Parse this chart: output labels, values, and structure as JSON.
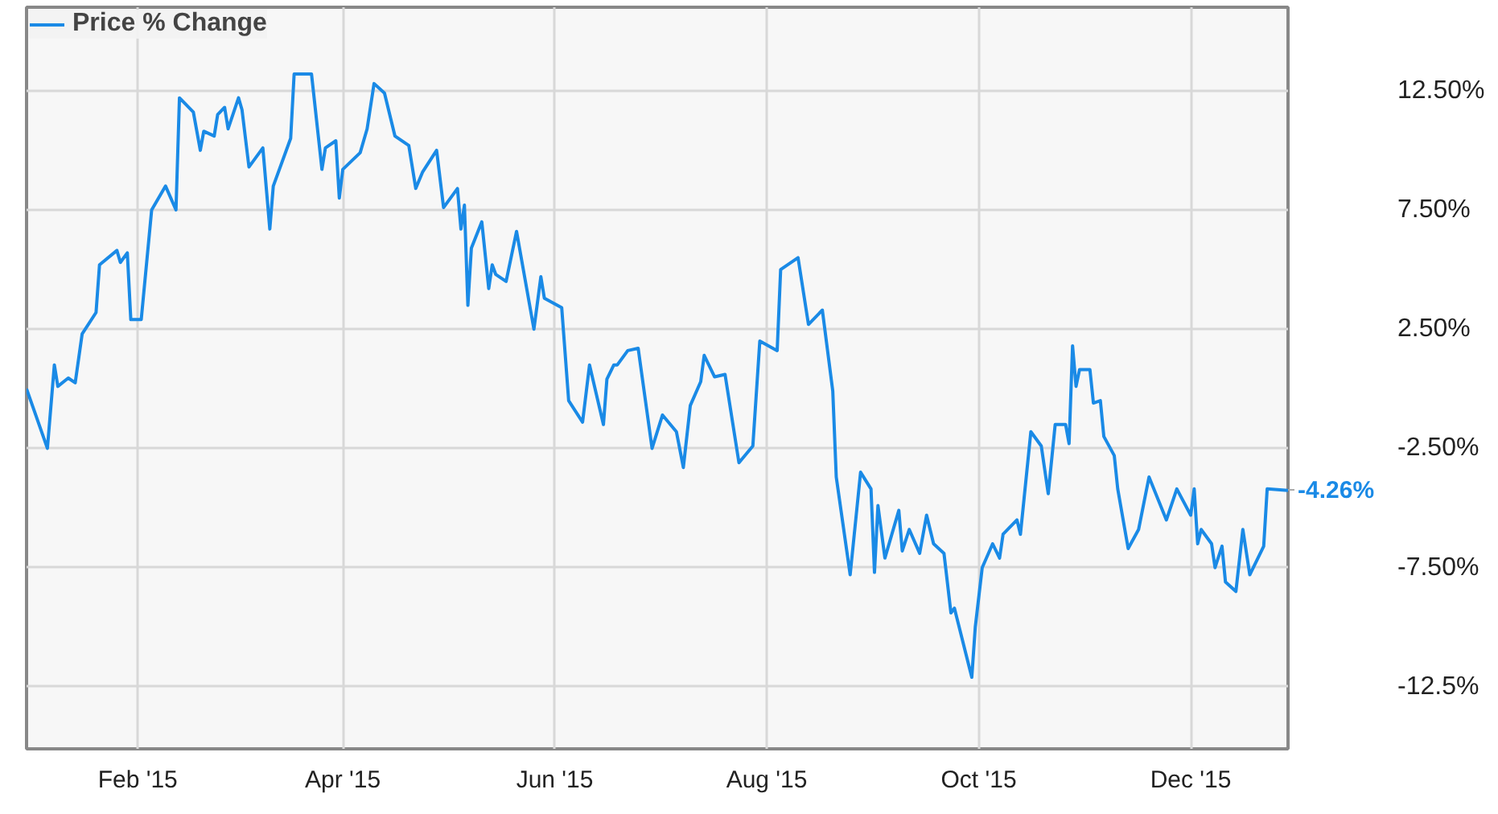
{
  "chart_data": {
    "type": "line",
    "x": [
      "2014-12-31",
      "2015-01-06",
      "2015-01-08",
      "2015-01-09",
      "2015-01-12",
      "2015-01-14",
      "2015-01-16",
      "2015-01-20",
      "2015-01-21",
      "2015-01-26",
      "2015-01-27",
      "2015-01-29",
      "2015-01-30",
      "2015-02-02",
      "2015-02-05",
      "2015-02-09",
      "2015-02-12",
      "2015-02-13",
      "2015-02-17",
      "2015-02-19",
      "2015-02-20",
      "2015-02-23",
      "2015-02-24",
      "2015-02-26",
      "2015-02-27",
      "2015-03-02",
      "2015-03-03",
      "2015-03-05",
      "2015-03-09",
      "2015-03-11",
      "2015-03-12",
      "2015-03-17",
      "2015-03-18",
      "2015-03-23",
      "2015-03-26",
      "2015-03-27",
      "2015-03-30",
      "2015-03-31",
      "2015-04-01",
      "2015-04-06",
      "2015-04-08",
      "2015-04-10",
      "2015-04-13",
      "2015-04-16",
      "2015-04-20",
      "2015-04-22",
      "2015-04-24",
      "2015-04-28",
      "2015-04-30",
      "2015-05-04",
      "2015-05-05",
      "2015-05-06",
      "2015-05-07",
      "2015-05-08",
      "2015-05-11",
      "2015-05-13",
      "2015-05-14",
      "2015-05-15",
      "2015-05-18",
      "2015-05-21",
      "2015-05-26",
      "2015-05-28",
      "2015-05-29",
      "2015-06-03",
      "2015-06-05",
      "2015-06-09",
      "2015-06-11",
      "2015-06-15",
      "2015-06-16",
      "2015-06-18",
      "2015-06-19",
      "2015-06-22",
      "2015-06-25",
      "2015-06-29",
      "2015-07-02",
      "2015-07-06",
      "2015-07-08",
      "2015-07-10",
      "2015-07-13",
      "2015-07-14",
      "2015-07-17",
      "2015-07-20",
      "2015-07-24",
      "2015-07-28",
      "2015-07-30",
      "2015-08-04",
      "2015-08-05",
      "2015-08-10",
      "2015-08-13",
      "2015-08-17",
      "2015-08-20",
      "2015-08-21",
      "2015-08-25",
      "2015-08-28",
      "2015-08-31",
      "2015-09-01",
      "2015-09-02",
      "2015-09-04",
      "2015-09-08",
      "2015-09-09",
      "2015-09-11",
      "2015-09-14",
      "2015-09-16",
      "2015-09-18",
      "2015-09-21",
      "2015-09-23",
      "2015-09-24",
      "2015-09-29",
      "2015-09-30",
      "2015-10-02",
      "2015-10-05",
      "2015-10-07",
      "2015-10-08",
      "2015-10-12",
      "2015-10-13",
      "2015-10-16",
      "2015-10-19",
      "2015-10-21",
      "2015-10-23",
      "2015-10-26",
      "2015-10-27",
      "2015-10-28",
      "2015-10-29",
      "2015-10-30",
      "2015-11-02",
      "2015-11-03",
      "2015-11-05",
      "2015-11-06",
      "2015-11-09",
      "2015-11-10",
      "2015-11-13",
      "2015-11-16",
      "2015-11-19",
      "2015-11-24",
      "2015-11-27",
      "2015-12-01",
      "2015-12-02",
      "2015-12-03",
      "2015-12-04",
      "2015-12-07",
      "2015-12-08",
      "2015-12-10",
      "2015-12-11",
      "2015-12-14",
      "2015-12-16",
      "2015-12-18",
      "2015-12-22",
      "2015-12-23",
      "2015-12-29"
    ],
    "series": [
      {
        "name": "Price % Change",
        "color": "#1a8ae6",
        "values": [
          0.0,
          -2.5,
          1.0,
          0.1,
          0.45,
          0.25,
          2.3,
          3.2,
          5.2,
          5.8,
          5.3,
          5.7,
          2.9,
          2.9,
          7.5,
          8.5,
          7.5,
          12.2,
          11.6,
          10.0,
          10.8,
          10.6,
          11.5,
          11.8,
          10.9,
          12.2,
          11.7,
          9.3,
          10.1,
          6.7,
          8.5,
          10.5,
          13.2,
          13.2,
          9.2,
          10.1,
          10.4,
          8.0,
          9.2,
          9.9,
          10.9,
          12.8,
          12.4,
          10.6,
          10.2,
          8.4,
          9.1,
          10.0,
          7.6,
          8.4,
          6.7,
          7.7,
          3.5,
          5.9,
          7.0,
          4.2,
          5.2,
          4.8,
          4.5,
          6.6,
          2.5,
          4.7,
          3.8,
          3.4,
          -0.5,
          -1.4,
          1.0,
          -1.5,
          0.4,
          1.0,
          1.0,
          1.6,
          1.7,
          -2.5,
          -1.1,
          -1.8,
          -3.3,
          -0.7,
          0.3,
          1.4,
          0.5,
          0.6,
          -3.1,
          -2.4,
          2.0,
          1.6,
          5.0,
          5.5,
          2.7,
          3.3,
          -0.1,
          -3.7,
          -7.8,
          -3.5,
          -4.2,
          -7.7,
          -4.9,
          -7.1,
          -5.1,
          -6.8,
          -5.9,
          -6.9,
          -5.3,
          -6.5,
          -6.9,
          -9.4,
          -9.2,
          -12.1,
          -10.0,
          -7.5,
          -6.5,
          -7.1,
          -6.1,
          -5.5,
          -6.1,
          -1.8,
          -2.4,
          -4.4,
          -1.5,
          -1.5,
          -2.3,
          1.8,
          0.1,
          0.8,
          0.8,
          -0.6,
          -0.5,
          -2.0,
          -2.8,
          -4.2,
          -6.7,
          -5.9,
          -3.7,
          -5.5,
          -4.2,
          -5.3,
          -4.2,
          -6.5,
          -5.9,
          -6.5,
          -7.5,
          -6.6,
          -8.1,
          -8.5,
          -5.9,
          -7.8,
          -6.6,
          -4.2,
          -4.26
        ]
      }
    ],
    "xlim": [
      "2014-12-31",
      "2015-12-29"
    ],
    "xticks": [
      {
        "value": "2015-02-01",
        "label": "Feb '15"
      },
      {
        "value": "2015-04-01",
        "label": "Apr '15"
      },
      {
        "value": "2015-06-01",
        "label": "Jun '15"
      },
      {
        "value": "2015-08-01",
        "label": "Aug '15"
      },
      {
        "value": "2015-10-01",
        "label": "Oct '15"
      },
      {
        "value": "2015-12-01",
        "label": "Dec '15"
      }
    ],
    "ylim": [
      -15.1,
      16
    ],
    "yticks": [
      {
        "value": 12.5,
        "label": "12.50%"
      },
      {
        "value": 7.5,
        "label": "7.50%"
      },
      {
        "value": 2.5,
        "label": "2.50%"
      },
      {
        "value": -2.5,
        "label": "-2.50%"
      },
      {
        "value": -7.5,
        "label": "-7.50%"
      },
      {
        "value": -12.5,
        "label": "-12.5%"
      }
    ],
    "annotations": [
      {
        "text": "-4.26%",
        "x": "2015-12-29",
        "y": -4.26
      }
    ],
    "grid": true,
    "legend": "top left",
    "marker": "none",
    "line_style": "solid"
  }
}
